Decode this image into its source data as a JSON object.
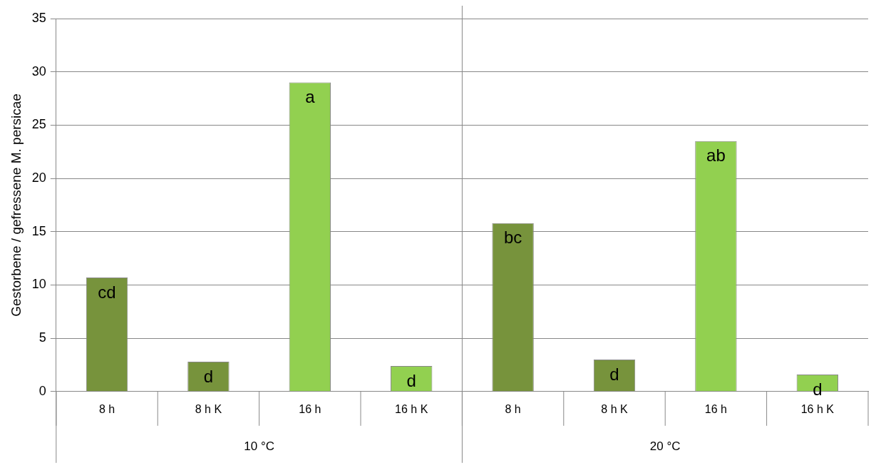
{
  "chart_data": {
    "type": "bar",
    "ylabel": "Gestorbene / gefressene M. persicae",
    "categories": [
      "8 h",
      "8 h K",
      "16 h",
      "16 h K",
      "8 h",
      "8 h K",
      "16 h",
      "16 h K"
    ],
    "values": [
      10.7,
      2.8,
      29,
      2.4,
      15.8,
      3.0,
      23.5,
      1.6
    ],
    "colors": [
      "#77933c",
      "#77933c",
      "#92d050",
      "#92d050",
      "#77933c",
      "#77933c",
      "#92d050",
      "#92d050"
    ],
    "value_labels": [
      "cd",
      "d",
      "a",
      "d",
      "bc",
      "d",
      "ab",
      "d"
    ],
    "annotations": [
      "10 °C",
      "20 °C"
    ],
    "ylim": [
      0,
      35
    ],
    "yticks": [
      0,
      5,
      10,
      15,
      20,
      25,
      30,
      35
    ],
    "grid": "y",
    "legend": false
  }
}
